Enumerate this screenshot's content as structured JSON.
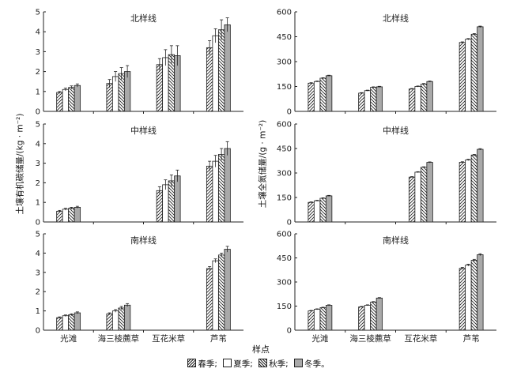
{
  "chart_data": [
    {
      "type": "bar",
      "panel": "left-top",
      "title": "北样线",
      "categories": [
        "光滩",
        "海三棱藨草",
        "互花米草",
        "芦苇"
      ],
      "ylim": [
        0,
        5
      ],
      "yticks": [
        0,
        1,
        2,
        3,
        4,
        5
      ],
      "series": [
        {
          "name": "春季",
          "values": [
            0.95,
            1.4,
            2.35,
            3.2
          ],
          "errors": [
            0.05,
            0.2,
            0.3,
            0.35
          ]
        },
        {
          "name": "夏季",
          "values": [
            1.1,
            1.75,
            2.7,
            3.8
          ],
          "errors": [
            0.07,
            0.25,
            0.4,
            0.35
          ]
        },
        {
          "name": "秋季",
          "values": [
            1.2,
            1.9,
            2.85,
            4.1
          ],
          "errors": [
            0.08,
            0.3,
            0.45,
            0.5
          ]
        },
        {
          "name": "冬季",
          "values": [
            1.3,
            2.0,
            2.8,
            4.35
          ],
          "errors": [
            0.08,
            0.3,
            0.5,
            0.35
          ]
        }
      ]
    },
    {
      "type": "bar",
      "panel": "left-middle",
      "title": "中样线",
      "categories": [
        "光滩",
        "海三棱藨草",
        "互花米草",
        "芦苇"
      ],
      "ylim": [
        0,
        5
      ],
      "yticks": [
        0,
        1,
        2,
        3,
        4,
        5
      ],
      "series": [
        {
          "name": "春季",
          "values": [
            0.55,
            null,
            1.6,
            2.85
          ],
          "errors": [
            0.04,
            null,
            0.2,
            0.25
          ]
        },
        {
          "name": "夏季",
          "values": [
            0.65,
            null,
            1.9,
            3.1
          ],
          "errors": [
            0.05,
            null,
            0.25,
            0.3
          ]
        },
        {
          "name": "秋季",
          "values": [
            0.7,
            null,
            2.1,
            3.45
          ],
          "errors": [
            0.05,
            null,
            0.3,
            0.3
          ]
        },
        {
          "name": "冬季",
          "values": [
            0.75,
            null,
            2.35,
            3.75
          ],
          "errors": [
            0.05,
            null,
            0.3,
            0.35
          ]
        }
      ]
    },
    {
      "type": "bar",
      "panel": "left-bottom",
      "title": "南样线",
      "categories": [
        "光滩",
        "海三棱藨草",
        "互花米草",
        "芦苇"
      ],
      "ylim": [
        0,
        5
      ],
      "yticks": [
        0,
        1,
        2,
        3,
        4,
        5
      ],
      "series": [
        {
          "name": "春季",
          "values": [
            0.65,
            0.85,
            null,
            3.2
          ],
          "errors": [
            0.04,
            0.05,
            null,
            0.1
          ]
        },
        {
          "name": "夏季",
          "values": [
            0.75,
            1.0,
            null,
            3.6
          ],
          "errors": [
            0.04,
            0.07,
            null,
            0.1
          ]
        },
        {
          "name": "秋季",
          "values": [
            0.8,
            1.15,
            null,
            3.9
          ],
          "errors": [
            0.05,
            0.08,
            null,
            0.1
          ]
        },
        {
          "name": "冬季",
          "values": [
            0.9,
            1.3,
            null,
            4.2
          ],
          "errors": [
            0.05,
            0.08,
            null,
            0.15
          ]
        }
      ]
    },
    {
      "type": "bar",
      "panel": "right-top",
      "title": "北样线",
      "categories": [
        "光滩",
        "海三棱藨草",
        "互花米草",
        "芦苇"
      ],
      "ylim": [
        0,
        600
      ],
      "yticks": [
        0,
        150,
        300,
        450,
        600
      ],
      "series": [
        {
          "name": "春季",
          "values": [
            170,
            110,
            135,
            415
          ],
          "errors": [
            3,
            3,
            3,
            4
          ]
        },
        {
          "name": "夏季",
          "values": [
            180,
            125,
            150,
            435
          ],
          "errors": [
            3,
            3,
            3,
            4
          ]
        },
        {
          "name": "秋季",
          "values": [
            200,
            145,
            165,
            465
          ],
          "errors": [
            3,
            3,
            3,
            4
          ]
        },
        {
          "name": "冬季",
          "values": [
            215,
            148,
            180,
            510
          ],
          "errors": [
            3,
            3,
            3,
            4
          ]
        }
      ]
    },
    {
      "type": "bar",
      "panel": "right-middle",
      "title": "中样线",
      "categories": [
        "光滩",
        "海三棱藨草",
        "互花米草",
        "芦苇"
      ],
      "ylim": [
        0,
        600
      ],
      "yticks": [
        0,
        150,
        300,
        450,
        600
      ],
      "series": [
        {
          "name": "春季",
          "values": [
            120,
            null,
            275,
            365
          ],
          "errors": [
            3,
            null,
            3,
            4
          ]
        },
        {
          "name": "夏季",
          "values": [
            130,
            null,
            305,
            380
          ],
          "errors": [
            3,
            null,
            3,
            4
          ]
        },
        {
          "name": "秋季",
          "values": [
            145,
            null,
            335,
            410
          ],
          "errors": [
            3,
            null,
            3,
            4
          ]
        },
        {
          "name": "冬季",
          "values": [
            160,
            null,
            365,
            445
          ],
          "errors": [
            3,
            null,
            3,
            4
          ]
        }
      ]
    },
    {
      "type": "bar",
      "panel": "right-bottom",
      "title": "南样线",
      "categories": [
        "光滩",
        "海三棱藨草",
        "互花米草",
        "芦苇"
      ],
      "ylim": [
        0,
        600
      ],
      "yticks": [
        0,
        150,
        300,
        450,
        600
      ],
      "series": [
        {
          "name": "春季",
          "values": [
            120,
            145,
            null,
            385
          ],
          "errors": [
            3,
            3,
            null,
            6
          ]
        },
        {
          "name": "夏季",
          "values": [
            130,
            155,
            null,
            405
          ],
          "errors": [
            3,
            3,
            null,
            6
          ]
        },
        {
          "name": "秋季",
          "values": [
            140,
            175,
            null,
            435
          ],
          "errors": [
            3,
            3,
            null,
            6
          ]
        },
        {
          "name": "冬季",
          "values": [
            155,
            200,
            null,
            470
          ],
          "errors": [
            3,
            3,
            null,
            6
          ]
        }
      ]
    }
  ],
  "labels": {
    "ylabel_left": "土壤有机碳储量/(kg · m⁻²)",
    "ylabel_right": "土壤全氮储量/(g · m⁻²)",
    "xlabel": "样点"
  },
  "legend": [
    {
      "label": "春季;",
      "pattern": "hatch-forward"
    },
    {
      "label": "夏季;",
      "pattern": "empty"
    },
    {
      "label": "秋季;",
      "pattern": "hatch-back"
    },
    {
      "label": "冬季。",
      "pattern": "solid-gray"
    }
  ],
  "colors": {
    "bar_gray": "#a9a9a9",
    "ink": "#222222"
  }
}
